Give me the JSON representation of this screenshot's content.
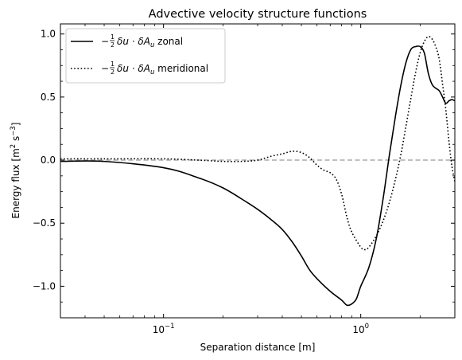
{
  "chart_data": {
    "type": "line",
    "title": "Advective velocity structure functions",
    "xlabel": "Separation distance [m]",
    "ylabel_parts": [
      "Energy flux [m",
      "2",
      " s",
      "−3",
      "]"
    ],
    "xscale": "log",
    "xlim": [
      0.03,
      3.0
    ],
    "ylim": [
      -1.25,
      1.08
    ],
    "x_major_ticks": [
      0.1,
      1.0
    ],
    "x_tick_label_parts": [
      [
        "10",
        "−1"
      ],
      [
        "10",
        "0"
      ]
    ],
    "y_major_ticks": [
      -1.0,
      -0.5,
      0.0,
      0.5,
      1.0
    ],
    "y_tick_labels": [
      "−1.0",
      "−0.5",
      "0.0",
      "0.5",
      "1.0"
    ],
    "zero_line": {
      "y": 0.0,
      "style": "dashed",
      "color": "#aaaaaa"
    },
    "legend": {
      "location": "top-left"
    },
    "series": [
      {
        "name": "zonal",
        "legend_main": "−",
        "legend_frac_num": "1",
        "legend_frac_den": "2",
        "legend_math": "δu · δA",
        "legend_sub": "u",
        "legend_suffix": " zonal",
        "style": "solid",
        "color": "#000000",
        "x": [
          0.03,
          0.05,
          0.1,
          0.15,
          0.2,
          0.25,
          0.3,
          0.35,
          0.4,
          0.45,
          0.5,
          0.55,
          0.6,
          0.7,
          0.8,
          0.85,
          0.9,
          0.95,
          1.0,
          1.1,
          1.2,
          1.3,
          1.4,
          1.5,
          1.6,
          1.7,
          1.8,
          1.9,
          2.0,
          2.1,
          2.2,
          2.3,
          2.4,
          2.5,
          2.6,
          2.7,
          2.8,
          2.9,
          3.0
        ],
        "y": [
          -0.01,
          -0.01,
          -0.06,
          -0.14,
          -0.22,
          -0.31,
          -0.39,
          -0.47,
          -0.55,
          -0.65,
          -0.76,
          -0.87,
          -0.94,
          -1.04,
          -1.11,
          -1.15,
          -1.14,
          -1.1,
          -1.0,
          -0.85,
          -0.62,
          -0.3,
          0.05,
          0.35,
          0.6,
          0.78,
          0.88,
          0.9,
          0.9,
          0.85,
          0.69,
          0.6,
          0.57,
          0.55,
          0.5,
          0.45,
          0.47,
          0.48,
          0.47
        ]
      },
      {
        "name": "meridional",
        "legend_main": "−",
        "legend_frac_num": "1",
        "legend_frac_den": "2",
        "legend_math": "δu · δA",
        "legend_sub": "u",
        "legend_suffix": " meridional",
        "style": "dotted",
        "color": "#000000",
        "x": [
          0.03,
          0.05,
          0.1,
          0.15,
          0.2,
          0.25,
          0.3,
          0.35,
          0.4,
          0.45,
          0.5,
          0.55,
          0.6,
          0.65,
          0.7,
          0.75,
          0.8,
          0.85,
          0.9,
          1.0,
          1.05,
          1.1,
          1.2,
          1.3,
          1.4,
          1.5,
          1.6,
          1.7,
          1.8,
          1.9,
          2.0,
          2.1,
          2.2,
          2.3,
          2.4,
          2.5,
          2.6,
          2.7,
          2.8,
          2.9,
          3.0
        ],
        "y": [
          0.01,
          0.01,
          0.01,
          0.0,
          -0.01,
          -0.01,
          0.0,
          0.03,
          0.05,
          0.07,
          0.06,
          0.02,
          -0.04,
          -0.08,
          -0.1,
          -0.15,
          -0.27,
          -0.45,
          -0.57,
          -0.69,
          -0.71,
          -0.69,
          -0.6,
          -0.48,
          -0.33,
          -0.15,
          0.05,
          0.28,
          0.5,
          0.7,
          0.85,
          0.94,
          0.98,
          0.96,
          0.9,
          0.8,
          0.6,
          0.4,
          0.15,
          -0.05,
          -0.17
        ]
      }
    ]
  }
}
